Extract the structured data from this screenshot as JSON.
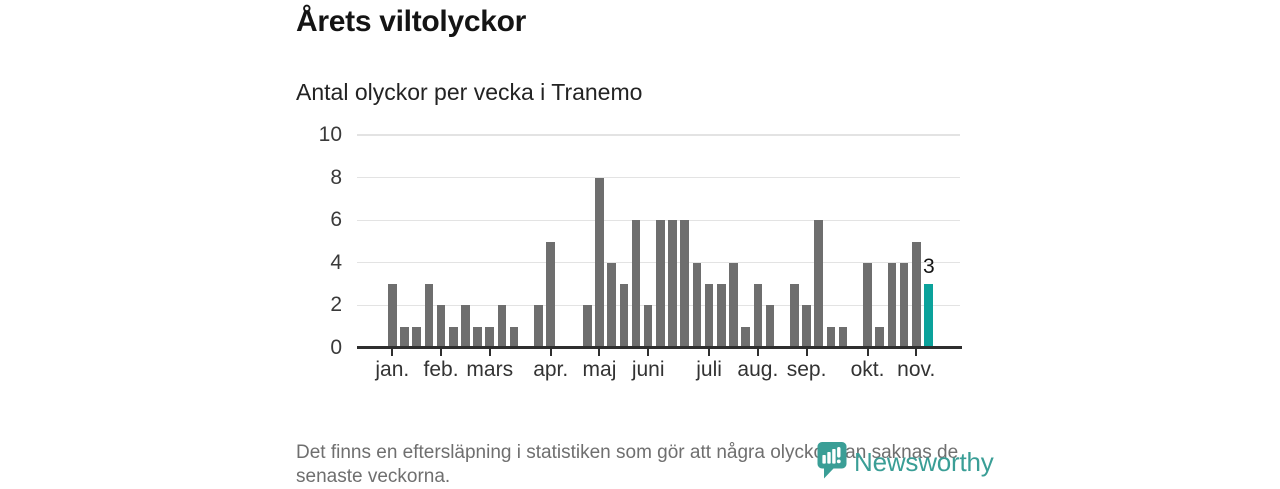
{
  "title": "Årets viltolyckor",
  "subtitle": "Antal olyckor per vecka i Tranemo",
  "note": "Det finns en eftersläpning i statistiken som gör att några olyckor kan saknas de senaste veckorna.",
  "logo": {
    "text": "Newsworthy"
  },
  "colors": {
    "bar": "#6e6e6e",
    "highlight": "#0ba29b",
    "grid": "#e3e3e3",
    "axis": "#2e2e2e",
    "logo_teal": "#3a9e96"
  },
  "chart_data": {
    "type": "bar",
    "title": "Årets viltolyckor",
    "subtitle": "Antal olyckor per vecka i Tranemo",
    "x_unit": "vecka",
    "values": [
      3,
      1,
      1,
      3,
      2,
      1,
      2,
      1,
      1,
      2,
      1,
      0,
      2,
      5,
      0,
      0,
      2,
      8,
      4,
      3,
      6,
      2,
      6,
      6,
      6,
      4,
      3,
      3,
      4,
      1,
      3,
      2,
      0,
      3,
      2,
      6,
      1,
      1,
      0,
      4,
      1,
      4,
      4,
      5,
      3
    ],
    "highlight_index": 44,
    "highlight_label": "3",
    "y_ticks": [
      0,
      2,
      4,
      6,
      8,
      10
    ],
    "ylim": [
      0,
      10
    ],
    "grid": "horizontal",
    "x_month_ticks": [
      {
        "label": "jan.",
        "week_index": 0
      },
      {
        "label": "feb.",
        "week_index": 4
      },
      {
        "label": "mars",
        "week_index": 8
      },
      {
        "label": "apr.",
        "week_index": 13
      },
      {
        "label": "maj",
        "week_index": 17
      },
      {
        "label": "juni",
        "week_index": 21
      },
      {
        "label": "juli",
        "week_index": 26
      },
      {
        "label": "aug.",
        "week_index": 30
      },
      {
        "label": "sep.",
        "week_index": 34
      },
      {
        "label": "okt.",
        "week_index": 39
      },
      {
        "label": "nov.",
        "week_index": 43
      }
    ]
  }
}
